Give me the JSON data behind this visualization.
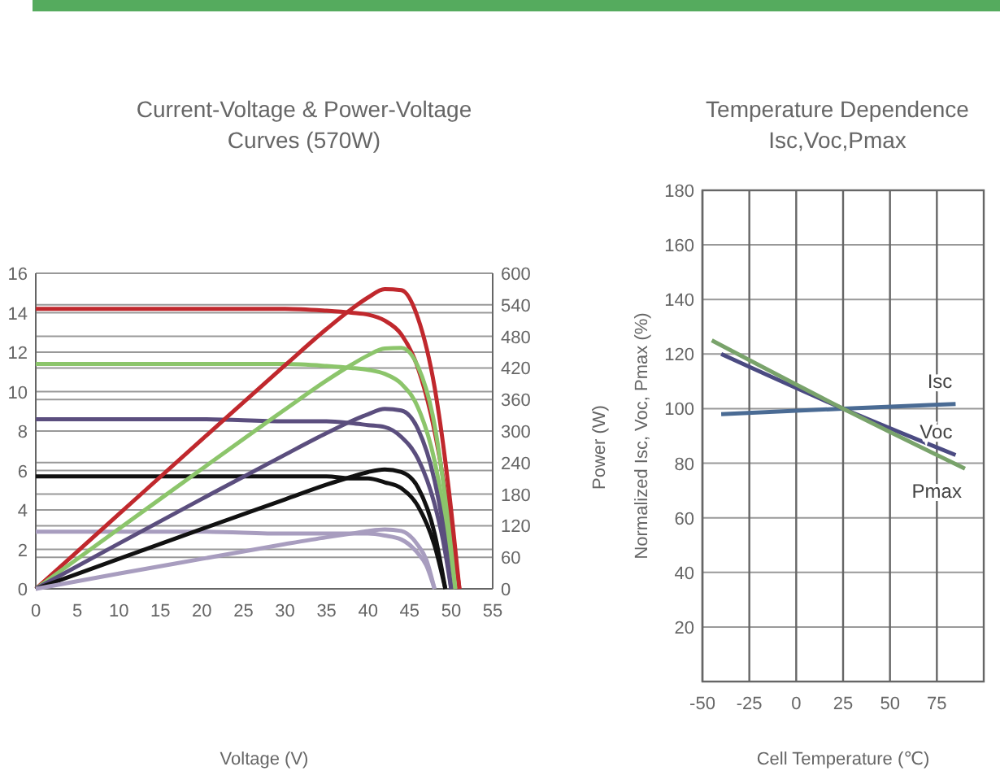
{
  "chart_data": [
    {
      "type": "line",
      "title": "Current-Voltage & Power-Voltage\nCurves (570W)",
      "xlabel": "Voltage (V)",
      "y2label": "Power (W)",
      "xlim": [
        0,
        55
      ],
      "xticks": [
        0,
        5,
        10,
        15,
        20,
        25,
        30,
        35,
        40,
        45,
        50,
        55
      ],
      "ylim": [
        0,
        16
      ],
      "yticks": [
        0,
        2,
        4,
        6,
        8,
        10,
        12,
        14,
        16
      ],
      "y2lim": [
        0,
        600
      ],
      "y2ticks": [
        0,
        60,
        120,
        180,
        240,
        300,
        360,
        420,
        480,
        540,
        600
      ],
      "grid": "y",
      "marker": "none",
      "series": [
        {
          "color": "#c0282d",
          "x": [
            0,
            10,
            20,
            30,
            35,
            38,
            40,
            42,
            44,
            46,
            48,
            50,
            51
          ],
          "values": [
            14.2,
            14.2,
            14.2,
            14.2,
            14.1,
            14.0,
            13.9,
            13.6,
            12.9,
            11.2,
            8.0,
            3.0,
            0
          ]
        },
        {
          "color": "#8cc56b",
          "x": [
            0,
            10,
            20,
            30,
            35,
            38,
            40,
            42,
            44,
            46,
            48,
            50,
            50.5
          ],
          "values": [
            11.4,
            11.4,
            11.4,
            11.4,
            11.3,
            11.2,
            11.1,
            10.9,
            10.4,
            9.2,
            6.5,
            1.5,
            0
          ]
        },
        {
          "color": "#5b4e7e",
          "x": [
            0,
            10,
            20,
            30,
            35,
            38,
            40,
            42,
            44,
            46,
            48,
            49,
            50
          ],
          "values": [
            8.6,
            8.6,
            8.6,
            8.5,
            8.5,
            8.4,
            8.3,
            8.2,
            7.7,
            6.6,
            4.3,
            2.5,
            0
          ]
        },
        {
          "color": "#111111",
          "x": [
            0,
            10,
            20,
            30,
            35,
            38,
            40,
            42,
            44,
            46,
            48,
            49.3
          ],
          "values": [
            5.7,
            5.7,
            5.7,
            5.7,
            5.7,
            5.6,
            5.6,
            5.4,
            5.1,
            4.2,
            2.2,
            0
          ]
        },
        {
          "color": "#a89dbf",
          "x": [
            0,
            10,
            20,
            30,
            35,
            38,
            40,
            42,
            44,
            46,
            47,
            48
          ],
          "values": [
            2.9,
            2.9,
            2.9,
            2.8,
            2.8,
            2.8,
            2.8,
            2.7,
            2.5,
            1.8,
            1.2,
            0
          ]
        },
        {
          "color": "#c0282d",
          "axis": "y2",
          "x": [
            0,
            10,
            20,
            30,
            35,
            38,
            40,
            42,
            44,
            46,
            48,
            50,
            51
          ],
          "values": [
            0,
            142,
            284,
            425,
            494,
            532,
            554,
            570,
            568,
            515,
            384,
            150,
            0
          ]
        },
        {
          "color": "#8cc56b",
          "axis": "y2",
          "x": [
            0,
            10,
            20,
            30,
            35,
            38,
            40,
            42,
            44,
            46,
            48,
            50,
            50.5
          ],
          "values": [
            0,
            114,
            228,
            341,
            396,
            426,
            444,
            457,
            458,
            423,
            312,
            75,
            0
          ]
        },
        {
          "color": "#5b4e7e",
          "axis": "y2",
          "x": [
            0,
            10,
            20,
            30,
            35,
            38,
            40,
            42,
            44,
            46,
            48,
            49,
            50
          ],
          "values": [
            0,
            86,
            171,
            255,
            296,
            319,
            332,
            342,
            339,
            304,
            206,
            123,
            0
          ]
        },
        {
          "color": "#111111",
          "axis": "y2",
          "x": [
            0,
            10,
            20,
            30,
            35,
            38,
            40,
            42,
            44,
            46,
            48,
            49.3
          ],
          "values": [
            0,
            57,
            114,
            170,
            198,
            213,
            222,
            227,
            222,
            193,
            106,
            0
          ]
        },
        {
          "color": "#a89dbf",
          "axis": "y2",
          "x": [
            0,
            10,
            20,
            30,
            35,
            38,
            40,
            42,
            44,
            46,
            47,
            48
          ],
          "values": [
            0,
            29,
            57,
            85,
            98,
            105,
            110,
            113,
            110,
            83,
            56,
            0
          ]
        }
      ]
    },
    {
      "type": "line",
      "title": "Temperature Dependence\nIsc,Voc,Pmax",
      "xlabel": "Cell Temperature (℃)",
      "ylabel": "Normalized Isc, Voc, Pmax (%)",
      "xlim": [
        -50,
        100
      ],
      "xticks": [
        -50,
        -25,
        0,
        25,
        50,
        75
      ],
      "ylim": [
        0,
        180
      ],
      "yticks": [
        {
          "value": 0,
          "label": null
        },
        20,
        40,
        60,
        80,
        100,
        120,
        140,
        160,
        180
      ],
      "grid": true,
      "marker": "none",
      "series": [
        {
          "name": "Isc",
          "color": "#4a6b94",
          "x": [
            -40,
            25,
            85
          ],
          "values": [
            98,
            100,
            101.7
          ]
        },
        {
          "name": "Voc",
          "color": "#4b4b82",
          "x": [
            -40,
            25,
            85
          ],
          "values": [
            120,
            100,
            83
          ]
        },
        {
          "name": "Pmax",
          "color": "#79a36b",
          "x": [
            -45,
            25,
            90
          ],
          "values": [
            125,
            100,
            78
          ]
        }
      ]
    }
  ]
}
